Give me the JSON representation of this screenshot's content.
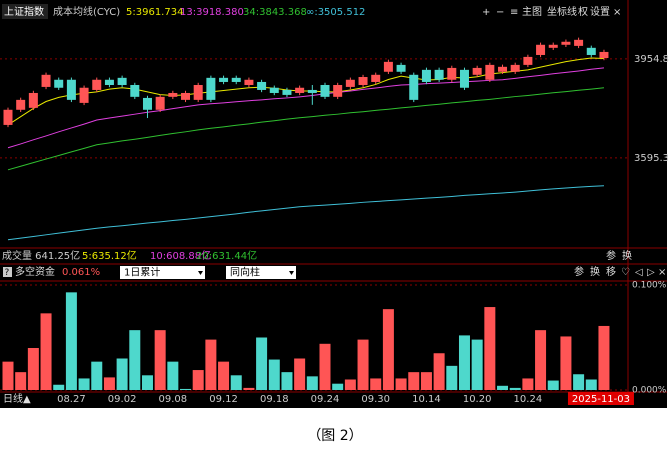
{
  "chart_data": [
    {
      "type": "candlestick",
      "title": "上证指数",
      "subtitle": "成本均线(CYC)",
      "categories": [
        null,
        null,
        null,
        null,
        null,
        "08.27",
        null,
        null,
        null,
        "09.02",
        null,
        null,
        null,
        "09.08",
        null,
        null,
        null,
        "09.12",
        null,
        null,
        null,
        "09.18",
        null,
        null,
        null,
        "09.24",
        null,
        null,
        null,
        "09.30",
        null,
        null,
        null,
        "10.14",
        null,
        null,
        null,
        "10.20",
        null,
        null,
        null,
        "10.24",
        null,
        null,
        null,
        null,
        null,
        "2025-11-03"
      ],
      "open": [
        3715,
        3770,
        3777,
        3853,
        3879,
        3879,
        3795,
        3842,
        3879,
        3886,
        3860,
        3813,
        3770,
        3817,
        3806,
        3806,
        3886,
        3886,
        3886,
        3860,
        3871,
        3850,
        3842,
        3831,
        3842,
        3860,
        3817,
        3853,
        3860,
        3871,
        3908,
        3933,
        3897,
        3915,
        3915,
        3879,
        3915,
        3897,
        3879,
        3908,
        3908,
        3933,
        3969,
        3995,
        4006,
        4002,
        3995,
        3958
      ],
      "high": [
        3778,
        3814,
        3839,
        3905,
        3887,
        3887,
        3858,
        3887,
        3887,
        3894,
        3868,
        3821,
        3825,
        3839,
        3839,
        3868,
        3894,
        3894,
        3894,
        3887,
        3879,
        3858,
        3850,
        3858,
        3860,
        3868,
        3868,
        3887,
        3897,
        3905,
        3952,
        3941,
        3905,
        3923,
        3923,
        3930,
        3923,
        3930,
        3941,
        3934,
        3941,
        3970,
        4014,
        4014,
        4025,
        4032,
        4003,
        3988
      ],
      "low": [
        3707,
        3762,
        3769,
        3845,
        3842,
        3798,
        3787,
        3834,
        3852,
        3852,
        3809,
        3740,
        3762,
        3809,
        3798,
        3798,
        3798,
        3863,
        3863,
        3852,
        3834,
        3823,
        3816,
        3823,
        3788,
        3809,
        3809,
        3845,
        3852,
        3863,
        3900,
        3900,
        3798,
        3863,
        3871,
        3871,
        3842,
        3889,
        3871,
        3900,
        3900,
        3925,
        3961,
        3987,
        3998,
        3994,
        3961,
        3950
      ],
      "close": [
        3770,
        3806,
        3831,
        3897,
        3850,
        3806,
        3850,
        3879,
        3860,
        3860,
        3817,
        3770,
        3817,
        3831,
        3831,
        3860,
        3806,
        3871,
        3871,
        3879,
        3842,
        3831,
        3824,
        3850,
        3831,
        3817,
        3860,
        3879,
        3889,
        3897,
        3944,
        3908,
        3806,
        3871,
        3879,
        3922,
        3850,
        3922,
        3933,
        3926,
        3933,
        3962,
        4006,
        4006,
        4017,
        4024,
        3969,
        3980
      ],
      "up_color": "#ff5555",
      "down_color": "#4ed8cc",
      "series": [
        {
          "name": "5:3961.734",
          "color": "#e8e800",
          "values": [
            3715,
            3745,
            3775,
            3800,
            3815,
            3824,
            3830,
            3835,
            3845,
            3850,
            3845,
            3835,
            3825,
            3822,
            3824,
            3830,
            3835,
            3840,
            3845,
            3850,
            3852,
            3848,
            3842,
            3838,
            3838,
            3835,
            3835,
            3842,
            3850,
            3862,
            3880,
            3892,
            3885,
            3878,
            3880,
            3888,
            3885,
            3890,
            3900,
            3905,
            3910,
            3915,
            3925,
            3935,
            3945,
            3952,
            3958,
            3956
          ]
        },
        {
          "name": "13:3918.380",
          "color": "#e040e0",
          "values": [
            3632,
            3646,
            3661,
            3675,
            3690,
            3704,
            3718,
            3733,
            3740,
            3747,
            3754,
            3761,
            3767,
            3774,
            3781,
            3788,
            3792,
            3795,
            3799,
            3803,
            3806,
            3810,
            3813,
            3817,
            3822,
            3828,
            3833,
            3838,
            3844,
            3849,
            3855,
            3860,
            3862,
            3865,
            3867,
            3869,
            3872,
            3874,
            3877,
            3879,
            3884,
            3890,
            3895,
            3901,
            3906,
            3911,
            3917,
            3922
          ]
        },
        {
          "name": "34:3843.368",
          "color": "#30c030",
          "values": [
            3552,
            3565,
            3578,
            3591,
            3604,
            3617,
            3630,
            3643,
            3650,
            3657,
            3663,
            3670,
            3677,
            3684,
            3690,
            3697,
            3703,
            3708,
            3714,
            3719,
            3725,
            3730,
            3736,
            3741,
            3745,
            3750,
            3754,
            3759,
            3763,
            3768,
            3772,
            3777,
            3781,
            3786,
            3790,
            3795,
            3799,
            3804,
            3808,
            3813,
            3818,
            3822,
            3827,
            3832,
            3836,
            3841,
            3845,
            3850
          ]
        },
        {
          "name": "∞:3505.512",
          "color": "#40c0d8",
          "values": [
            3298,
            3304,
            3310,
            3316,
            3322,
            3328,
            3334,
            3340,
            3345,
            3349,
            3354,
            3359,
            3363,
            3368,
            3372,
            3377,
            3382,
            3387,
            3392,
            3398,
            3403,
            3408,
            3413,
            3418,
            3421,
            3424,
            3427,
            3430,
            3434,
            3437,
            3440,
            3443,
            3446,
            3449,
            3452,
            3455,
            3459,
            3462,
            3465,
            3468,
            3471,
            3475,
            3479,
            3483,
            3486,
            3489,
            3492,
            3494
          ]
        }
      ],
      "ylim": [
        3279,
        4096
      ],
      "yticks": [
        3954.8,
        3595.3
      ],
      "grid": true
    },
    {
      "type": "bar",
      "title": "多空资金",
      "subtitle": "0.061%",
      "values": [
        0.027,
        0.017,
        0.04,
        0.073,
        0.005,
        0.093,
        0.011,
        0.027,
        0.012,
        0.03,
        0.057,
        0.014,
        0.057,
        0.027,
        0.001,
        0.019,
        0.048,
        0.027,
        0.014,
        0.002,
        0.05,
        0.029,
        0.017,
        0.03,
        0.013,
        0.044,
        0.006,
        0.01,
        0.048,
        0.011,
        0.077,
        0.011,
        0.017,
        0.017,
        0.035,
        0.023,
        0.052,
        0.048,
        0.079,
        0.004,
        0.002,
        0.011,
        0.057,
        0.009,
        0.051,
        0.015,
        0.01,
        0.061
      ],
      "bar_colors": [
        "#ff5555",
        "#ff5555",
        "#ff5555",
        "#ff5555",
        "#4ed8cc",
        "#4ed8cc",
        "#4ed8cc",
        "#4ed8cc",
        "#ff5555",
        "#4ed8cc",
        "#4ed8cc",
        "#4ed8cc",
        "#ff5555",
        "#4ed8cc",
        "#4ed8cc",
        "#ff5555",
        "#ff5555",
        "#ff5555",
        "#4ed8cc",
        "#ff5555",
        "#4ed8cc",
        "#4ed8cc",
        "#4ed8cc",
        "#ff5555",
        "#4ed8cc",
        "#ff5555",
        "#4ed8cc",
        "#ff5555",
        "#ff5555",
        "#ff5555",
        "#ff5555",
        "#ff5555",
        "#ff5555",
        "#ff5555",
        "#ff5555",
        "#4ed8cc",
        "#4ed8cc",
        "#4ed8cc",
        "#ff5555",
        "#4ed8cc",
        "#4ed8cc",
        "#ff5555",
        "#ff5555",
        "#4ed8cc",
        "#ff5555",
        "#4ed8cc",
        "#4ed8cc",
        "#ff5555"
      ],
      "ylim": [
        0,
        0.1
      ],
      "yticks": [
        {
          "value": 0.1,
          "label": "0.100%"
        },
        {
          "value": 0,
          "label": "0.000%"
        }
      ],
      "grid": true
    }
  ],
  "main_toolbar": [
    "+",
    "−",
    "≡",
    "主图",
    "坐标线",
    "权",
    "设置",
    "×"
  ],
  "volume": {
    "label": "成交量 641.25亿",
    "series": [
      {
        "name": "5:635.12亿",
        "color": "#e8e800"
      },
      {
        "name": "10:608.88亿",
        "color": "#e040e0"
      },
      {
        "name": "20:631.44亿",
        "color": "#30c030"
      }
    ],
    "toolbar": [
      "参",
      "换"
    ]
  },
  "indicator": {
    "help": "?",
    "dropdowns": [
      "1日累计",
      "同向柱"
    ],
    "toolbar": [
      "参",
      "换",
      "移",
      "♡",
      "◁",
      "▷",
      "×"
    ]
  },
  "period": "日线▲",
  "caption": "（图 2）"
}
